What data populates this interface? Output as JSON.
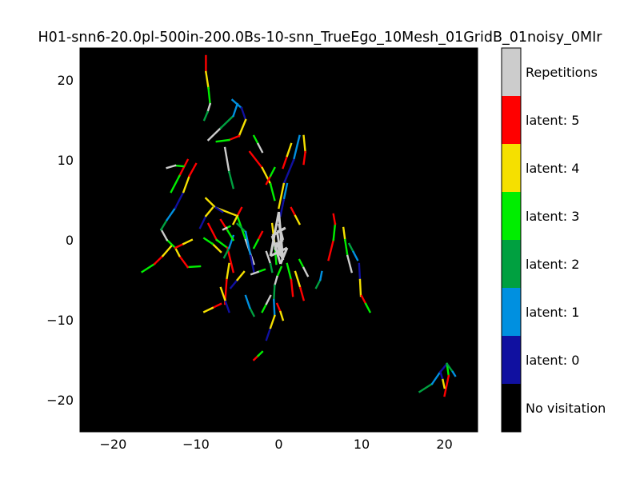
{
  "chart_data": {
    "type": "heatmap",
    "title": "H01-snn6-20.0pl-500in-200.0Bs-10-snn_TrueEgo_10Mesh_01GridB_01noisy_0MIr",
    "xlabel": "",
    "ylabel": "",
    "xlim": [
      -24,
      24
    ],
    "ylim": [
      -24,
      24
    ],
    "x_ticks": [
      -20,
      -10,
      0,
      10,
      20
    ],
    "y_ticks": [
      20,
      10,
      0,
      -10,
      -20
    ],
    "x_tick_labels": [
      "−20",
      "−10",
      "0",
      "10",
      "20"
    ],
    "y_tick_labels": [
      "20",
      "10",
      "0",
      "−10",
      "−20"
    ],
    "background_color": "#000000",
    "colorbar": {
      "labels": [
        "Repetitions",
        "latent: 5",
        "latent: 4",
        "latent: 3",
        "latent: 2",
        "latent: 1",
        "latent: 0",
        "No visitation"
      ],
      "colors": [
        "#cccccc",
        "#ff0000",
        "#f5e000",
        "#00ee00",
        "#00a040",
        "#0090e0",
        "#1010a0",
        "#000000"
      ]
    },
    "series": [
      {
        "values": [
          [
            -8.8,
            23
          ],
          [
            -8.8,
            21
          ],
          [
            -8.5,
            19
          ],
          [
            -8.3,
            17
          ],
          [
            -8.6,
            16
          ],
          [
            -9,
            15
          ]
        ]
      },
      {
        "values": [
          [
            -5.6,
            17.5
          ],
          [
            -4.5,
            16.5
          ],
          [
            -4,
            15
          ],
          [
            -4.8,
            13
          ],
          [
            -6,
            12.5
          ],
          [
            -7.5,
            12.3
          ]
        ]
      },
      {
        "values": [
          [
            -3.5,
            11
          ],
          [
            -2,
            9
          ],
          [
            -1,
            7
          ],
          [
            -0.5,
            5
          ]
        ]
      },
      {
        "values": [
          [
            -6.5,
            11.5
          ],
          [
            -6,
            8.5
          ],
          [
            -5.5,
            6.5
          ]
        ]
      },
      {
        "values": [
          [
            2.5,
            13
          ],
          [
            1.8,
            10
          ],
          [
            0.6,
            7
          ],
          [
            0,
            4
          ]
        ]
      },
      {
        "values": [
          [
            -8.5,
            2
          ],
          [
            -7.5,
            0
          ],
          [
            -6.2,
            -1
          ],
          [
            -5.5,
            -4
          ]
        ]
      },
      {
        "values": [
          [
            -7.5,
            4
          ],
          [
            -5,
            3
          ],
          [
            -4,
            0
          ],
          [
            -3,
            -3
          ]
        ]
      },
      {
        "values": [
          [
            -5,
            2
          ],
          [
            -4,
            1
          ],
          [
            -3.4,
            -2
          ],
          [
            -3,
            -4
          ]
        ]
      },
      {
        "values": [
          [
            -6,
            -3
          ],
          [
            -6.3,
            -5
          ],
          [
            -6.5,
            -8
          ]
        ]
      },
      {
        "values": [
          [
            -9.5,
            -3.3
          ],
          [
            -11,
            -3.4
          ],
          [
            -12,
            -2
          ],
          [
            -12.5,
            -1
          ],
          [
            -13.5,
            0
          ],
          [
            -14.2,
            1.3
          ]
        ]
      },
      {
        "values": [
          [
            -14.2,
            1.3
          ],
          [
            -13.5,
            2.5
          ],
          [
            -12.5,
            4
          ],
          [
            -11.5,
            6
          ],
          [
            -10.8,
            8
          ],
          [
            -10,
            9.5
          ]
        ]
      },
      {
        "values": [
          [
            -16.5,
            -4
          ],
          [
            -15,
            -3
          ],
          [
            -14,
            -2
          ],
          [
            -13,
            -0.8
          ]
        ]
      },
      {
        "values": [
          [
            0.3,
            -3.4
          ],
          [
            -0.2,
            -4.6
          ],
          [
            -0.5,
            -5.7
          ],
          [
            -0.6,
            -7.5
          ],
          [
            -0.5,
            -9.5
          ]
        ]
      },
      {
        "values": [
          [
            -1.5,
            -12.5
          ],
          [
            -1,
            -11
          ],
          [
            -0.5,
            -9.5
          ]
        ]
      },
      {
        "values": [
          [
            6,
            -2.5
          ],
          [
            6.6,
            0
          ],
          [
            6.8,
            2
          ],
          [
            6.6,
            3.2
          ]
        ]
      },
      {
        "values": [
          [
            7.8,
            1.5
          ],
          [
            8,
            0
          ],
          [
            8.3,
            -2
          ],
          [
            8.8,
            -4
          ]
        ]
      },
      {
        "values": [
          [
            17,
            -19
          ],
          [
            18.5,
            -18
          ],
          [
            19.5,
            -16.5
          ],
          [
            20.3,
            -15.5
          ]
        ]
      },
      {
        "values": [
          [
            2,
            -4
          ],
          [
            2.6,
            -6
          ],
          [
            3,
            -7.5
          ]
        ]
      },
      {
        "values": [
          [
            1,
            -3
          ],
          [
            1.5,
            -5
          ],
          [
            1.7,
            -7
          ]
        ]
      },
      {
        "values": [
          [
            -0.8,
            2
          ],
          [
            -0.5,
            -0.5
          ],
          [
            -0.3,
            -3
          ]
        ]
      },
      {
        "values": [
          [
            -1.5,
            -1.5
          ],
          [
            -1,
            -3
          ],
          [
            -0.8,
            -4
          ]
        ]
      },
      {
        "values": [
          [
            1,
            7
          ],
          [
            0.6,
            5
          ],
          [
            0.2,
            3
          ]
        ]
      },
      {
        "values": [
          [
            3,
            13
          ],
          [
            3.2,
            11
          ],
          [
            3,
            9.5
          ]
        ]
      },
      {
        "values": [
          [
            20.3,
            -15.5
          ],
          [
            20.5,
            -17
          ],
          [
            20,
            -19.5
          ]
        ]
      },
      {
        "values": [
          [
            -7,
            -1.5
          ],
          [
            -8,
            -0.5
          ],
          [
            -9,
            0.2
          ]
        ]
      },
      {
        "values": [
          [
            -8.5,
            12.5
          ],
          [
            -7,
            14
          ],
          [
            -5.5,
            15.5
          ],
          [
            -5,
            17
          ]
        ]
      },
      {
        "values": [
          [
            -6.8,
            3.5
          ],
          [
            -7.8,
            4.2
          ],
          [
            -8.8,
            5.2
          ]
        ]
      },
      {
        "values": [
          [
            -11,
            10
          ],
          [
            -12,
            8
          ],
          [
            -13,
            6
          ]
        ]
      },
      {
        "values": [
          [
            -12.5,
            -1
          ],
          [
            -11.5,
            -0.5
          ],
          [
            -10.5,
            0
          ]
        ]
      },
      {
        "values": [
          [
            -11.5,
            9.2
          ],
          [
            -12.5,
            9.3
          ],
          [
            -13.5,
            9
          ]
        ]
      },
      {
        "values": [
          [
            -6.6,
            -2.2
          ],
          [
            -6,
            -1
          ],
          [
            -5.5,
            0.5
          ]
        ]
      },
      {
        "values": [
          [
            -9.5,
            1.5
          ],
          [
            -8.8,
            3
          ],
          [
            -8,
            4
          ]
        ]
      },
      {
        "values": [
          [
            -7,
            2.5
          ],
          [
            -6.2,
            1.2
          ],
          [
            -5.5,
            0
          ]
        ]
      },
      {
        "values": [
          [
            -4.5,
            4
          ],
          [
            -5,
            3
          ],
          [
            -5.5,
            2
          ]
        ]
      },
      {
        "values": [
          [
            -5.9,
            1.7
          ],
          [
            -6.3,
            1.5
          ],
          [
            -6.7,
            1.3
          ]
        ]
      },
      {
        "values": [
          [
            20.3,
            -15.5
          ],
          [
            21,
            -16.5
          ],
          [
            21.3,
            -17
          ]
        ]
      },
      {
        "values": [
          [
            19.5,
            -16.5
          ],
          [
            19.8,
            -17.5
          ],
          [
            20,
            -18.5
          ]
        ]
      },
      {
        "values": [
          [
            -3,
            -15
          ],
          [
            -2.5,
            -14.5
          ],
          [
            -2,
            -14
          ]
        ]
      },
      {
        "values": [
          [
            -0.2,
            -8
          ],
          [
            0.2,
            -9
          ],
          [
            0.5,
            -10
          ]
        ]
      },
      {
        "values": [
          [
            -2,
            -9
          ],
          [
            -1.5,
            -8
          ],
          [
            -1,
            -7
          ]
        ]
      },
      {
        "values": [
          [
            -3,
            -9.5
          ],
          [
            -3.5,
            -8.5
          ],
          [
            -4,
            -7
          ]
        ]
      },
      {
        "values": [
          [
            -6,
            -9
          ],
          [
            -6.5,
            -7.5
          ],
          [
            -7,
            -6
          ]
        ]
      },
      {
        "values": [
          [
            -2,
            1
          ],
          [
            -2.5,
            0
          ],
          [
            -3,
            -1
          ]
        ]
      },
      {
        "values": [
          [
            1.5,
            4
          ],
          [
            2,
            3
          ],
          [
            2.5,
            2
          ]
        ]
      },
      {
        "values": [
          [
            2.5,
            -2.5
          ],
          [
            3,
            -3.5
          ],
          [
            3.5,
            -4.5
          ]
        ]
      },
      {
        "values": [
          [
            8.5,
            -0.5
          ],
          [
            9,
            -1.5
          ],
          [
            9.5,
            -2.5
          ]
        ]
      },
      {
        "values": [
          [
            9.7,
            -3
          ],
          [
            9.8,
            -5
          ],
          [
            9.9,
            -7
          ]
        ]
      },
      {
        "values": [
          [
            10,
            -7
          ],
          [
            10.5,
            -8
          ],
          [
            11,
            -9
          ]
        ]
      },
      {
        "values": [
          [
            -7,
            -8
          ],
          [
            -8,
            -8.5
          ],
          [
            -9,
            -9
          ]
        ]
      },
      {
        "values": [
          [
            -1.7,
            -3.7
          ],
          [
            -2.5,
            -4
          ],
          [
            -3.3,
            -4.3
          ]
        ]
      },
      {
        "values": [
          [
            4.5,
            -6
          ],
          [
            5,
            -5
          ],
          [
            5.2,
            -4
          ]
        ]
      },
      {
        "values": [
          [
            -5.8,
            -6
          ],
          [
            -5,
            -5
          ],
          [
            -4.2,
            -4
          ]
        ]
      },
      {
        "values": [
          [
            -1.5,
            7
          ],
          [
            -1,
            8
          ],
          [
            -0.5,
            9
          ]
        ]
      },
      {
        "values": [
          [
            0.5,
            9
          ],
          [
            1,
            10.5
          ],
          [
            1.5,
            12
          ]
        ]
      },
      {
        "values": [
          [
            -3,
            13
          ],
          [
            -2.5,
            12
          ],
          [
            -2,
            11
          ]
        ]
      }
    ]
  }
}
